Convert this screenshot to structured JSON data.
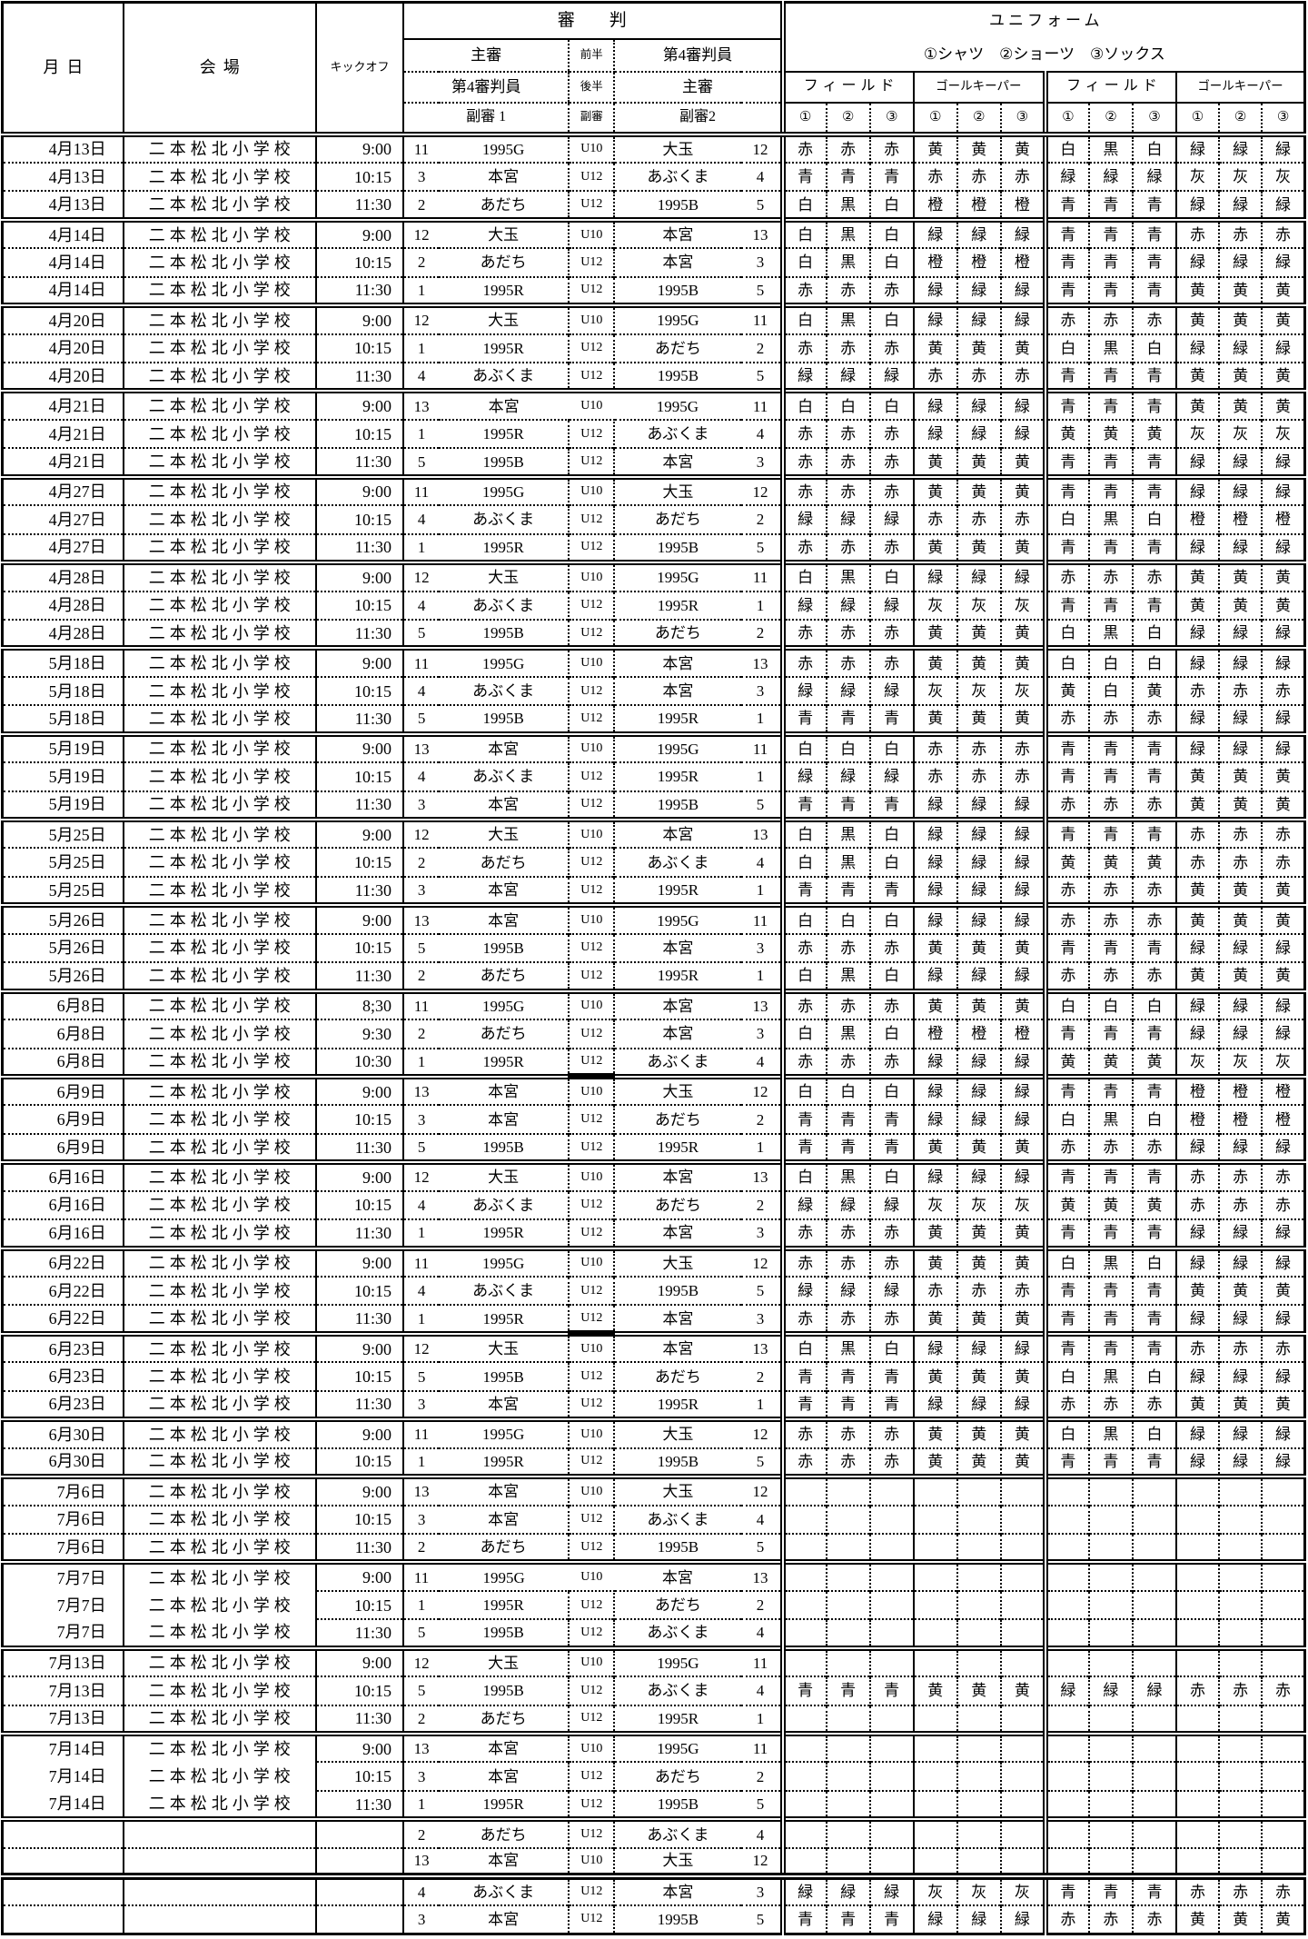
{
  "header": {
    "date": "月日",
    "venue": "会場",
    "kickoff": "キックオフ",
    "referee_title": "審　　判",
    "referee_rows": {
      "r2l": "主審",
      "r2h": "前半",
      "r2r": "第4審判員",
      "r3l": "第4審判員",
      "r3h": "後半",
      "r3r": "主審",
      "r4l": "副審 1",
      "r4h": "副審",
      "r4r": "副審2"
    },
    "uniform_title": "ユニフォーム",
    "uniform_subtitle": "①シャツ　②ショーツ　③ソックス",
    "group_labels": [
      "フィールド",
      "ゴールキーパー",
      "フィールド",
      "ゴールキーパー"
    ],
    "num_labels": [
      "①",
      "②",
      "③",
      "①",
      "②",
      "③",
      "①",
      "②",
      "③",
      "①",
      "②",
      "③"
    ]
  },
  "legend": {
    "colors_used": [
      "赤",
      "青",
      "白",
      "黒",
      "緑",
      "黄",
      "橙",
      "灰"
    ]
  },
  "rows": [
    {
      "d": "4月13日",
      "v": "二本松北小学校",
      "t": "9:00",
      "n1": "11",
      "r1": "1995G",
      "h": "U10",
      "r2": "大玉",
      "n2": "12",
      "c": "赤赤赤黄黄黄白黒白緑緑緑",
      "g": 1
    },
    {
      "d": "4月13日",
      "v": "二本松北小学校",
      "t": "10:15",
      "n1": "3",
      "r1": "本宮",
      "h": "U12",
      "r2": "あぶくま",
      "n2": "4",
      "c": "青青青赤赤赤緑緑緑灰灰灰"
    },
    {
      "d": "4月13日",
      "v": "二本松北小学校",
      "t": "11:30",
      "n1": "2",
      "r1": "あだち",
      "h": "U12",
      "r2": "1995B",
      "n2": "5",
      "c": "白黒白橙橙橙青青青緑緑緑"
    },
    {
      "d": "4月14日",
      "v": "二本松北小学校",
      "t": "9:00",
      "n1": "12",
      "r1": "大玉",
      "h": "U10",
      "r2": "本宮",
      "n2": "13",
      "c": "白黒白緑緑緑青青青赤赤赤",
      "g": 1
    },
    {
      "d": "4月14日",
      "v": "二本松北小学校",
      "t": "10:15",
      "n1": "2",
      "r1": "あだち",
      "h": "U12",
      "r2": "本宮",
      "n2": "3",
      "c": "白黒白橙橙橙青青青緑緑緑"
    },
    {
      "d": "4月14日",
      "v": "二本松北小学校",
      "t": "11:30",
      "n1": "1",
      "r1": "1995R",
      "h": "U12",
      "r2": "1995B",
      "n2": "5",
      "c": "赤赤赤緑緑緑青青青黄黄黄"
    },
    {
      "d": "4月20日",
      "v": "二本松北小学校",
      "t": "9:00",
      "n1": "12",
      "r1": "大玉",
      "h": "U10",
      "r2": "1995G",
      "n2": "11",
      "c": "白黒白緑緑緑赤赤赤黄黄黄",
      "g": 1
    },
    {
      "d": "4月20日",
      "v": "二本松北小学校",
      "t": "10:15",
      "n1": "1",
      "r1": "1995R",
      "h": "U12",
      "r2": "あだち",
      "n2": "2",
      "c": "赤赤赤黄黄黄白黒白緑緑緑"
    },
    {
      "d": "4月20日",
      "v": "二本松北小学校",
      "t": "11:30",
      "n1": "4",
      "r1": "あぶくま",
      "h": "U12",
      "r2": "1995B",
      "n2": "5",
      "c": "緑緑緑赤赤赤青青青黄黄黄"
    },
    {
      "d": "4月21日",
      "v": "二本松北小学校",
      "t": "9:00",
      "n1": "13",
      "r1": "本宮",
      "h": "U10",
      "r2": "1995G",
      "n2": "11",
      "c": "白白白緑緑緑青青青黄黄黄",
      "g": 1,
      "hb": 1
    },
    {
      "d": "4月21日",
      "v": "二本松北小学校",
      "t": "10:15",
      "n1": "1",
      "r1": "1995R",
      "h": "U12",
      "r2": "あぶくま",
      "n2": "4",
      "c": "赤赤赤緑緑緑黄黄黄灰灰灰"
    },
    {
      "d": "4月21日",
      "v": "二本松北小学校",
      "t": "11:30",
      "n1": "5",
      "r1": "1995B",
      "h": "U12",
      "r2": "本宮",
      "n2": "3",
      "c": "赤赤赤黄黄黄青青青緑緑緑"
    },
    {
      "d": "4月27日",
      "v": "二本松北小学校",
      "t": "9:00",
      "n1": "11",
      "r1": "1995G",
      "h": "U10",
      "r2": "大玉",
      "n2": "12",
      "c": "赤赤赤黄黄黄青青青緑緑緑",
      "g": 1
    },
    {
      "d": "4月27日",
      "v": "二本松北小学校",
      "t": "10:15",
      "n1": "4",
      "r1": "あぶくま",
      "h": "U12",
      "r2": "あだち",
      "n2": "2",
      "c": "緑緑緑赤赤赤白黒白橙橙橙"
    },
    {
      "d": "4月27日",
      "v": "二本松北小学校",
      "t": "11:30",
      "n1": "1",
      "r1": "1995R",
      "h": "U12",
      "r2": "1995B",
      "n2": "5",
      "c": "赤赤赤黄黄黄青青青緑緑緑"
    },
    {
      "d": "4月28日",
      "v": "二本松北小学校",
      "t": "9:00",
      "n1": "12",
      "r1": "大玉",
      "h": "U10",
      "r2": "1995G",
      "n2": "11",
      "c": "白黒白緑緑緑赤赤赤黄黄黄",
      "g": 1
    },
    {
      "d": "4月28日",
      "v": "二本松北小学校",
      "t": "10:15",
      "n1": "4",
      "r1": "あぶくま",
      "h": "U12",
      "r2": "1995R",
      "n2": "1",
      "c": "緑緑緑灰灰灰青青青黄黄黄"
    },
    {
      "d": "4月28日",
      "v": "二本松北小学校",
      "t": "11:30",
      "n1": "5",
      "r1": "1995B",
      "h": "U12",
      "r2": "あだち",
      "n2": "2",
      "c": "赤赤赤黄黄黄白黒白緑緑緑"
    },
    {
      "d": "5月18日",
      "v": "二本松北小学校",
      "t": "9:00",
      "n1": "11",
      "r1": "1995G",
      "h": "U10",
      "r2": "本宮",
      "n2": "13",
      "c": "赤赤赤黄黄黄白白白緑緑緑",
      "g": 1
    },
    {
      "d": "5月18日",
      "v": "二本松北小学校",
      "t": "10:15",
      "n1": "4",
      "r1": "あぶくま",
      "h": "U12",
      "r2": "本宮",
      "n2": "3",
      "c": "緑緑緑灰灰灰黄白黄赤赤赤"
    },
    {
      "d": "5月18日",
      "v": "二本松北小学校",
      "t": "11:30",
      "n1": "5",
      "r1": "1995B",
      "h": "U12",
      "r2": "1995R",
      "n2": "1",
      "c": "青青青黄黄黄赤赤赤緑緑緑"
    },
    {
      "d": "5月19日",
      "v": "二本松北小学校",
      "t": "9:00",
      "n1": "13",
      "r1": "本宮",
      "h": "U10",
      "r2": "1995G",
      "n2": "11",
      "c": "白白白赤赤赤青青青緑緑緑",
      "g": 1
    },
    {
      "d": "5月19日",
      "v": "二本松北小学校",
      "t": "10:15",
      "n1": "4",
      "r1": "あぶくま",
      "h": "U12",
      "r2": "1995R",
      "n2": "1",
      "c": "緑緑緑赤赤赤青青青黄黄黄"
    },
    {
      "d": "5月19日",
      "v": "二本松北小学校",
      "t": "11:30",
      "n1": "3",
      "r1": "本宮",
      "h": "U12",
      "r2": "1995B",
      "n2": "5",
      "c": "青青青緑緑緑赤赤赤黄黄黄"
    },
    {
      "d": "5月25日",
      "v": "二本松北小学校",
      "t": "9:00",
      "n1": "12",
      "r1": "大玉",
      "h": "U10",
      "r2": "本宮",
      "n2": "13",
      "c": "白黒白緑緑緑青青青赤赤赤",
      "g": 1
    },
    {
      "d": "5月25日",
      "v": "二本松北小学校",
      "t": "10:15",
      "n1": "2",
      "r1": "あだち",
      "h": "U12",
      "r2": "あぶくま",
      "n2": "4",
      "c": "白黒白緑緑緑黄黄黄赤赤赤"
    },
    {
      "d": "5月25日",
      "v": "二本松北小学校",
      "t": "11:30",
      "n1": "3",
      "r1": "本宮",
      "h": "U12",
      "r2": "1995R",
      "n2": "1",
      "c": "青青青緑緑緑赤赤赤黄黄黄"
    },
    {
      "d": "5月26日",
      "v": "二本松北小学校",
      "t": "9:00",
      "n1": "13",
      "r1": "本宮",
      "h": "U10",
      "r2": "1995G",
      "n2": "11",
      "c": "白白白緑緑緑赤赤赤黄黄黄",
      "g": 1
    },
    {
      "d": "5月26日",
      "v": "二本松北小学校",
      "t": "10:15",
      "n1": "5",
      "r1": "1995B",
      "h": "U12",
      "r2": "本宮",
      "n2": "3",
      "c": "赤赤赤黄黄黄青青青緑緑緑"
    },
    {
      "d": "5月26日",
      "v": "二本松北小学校",
      "t": "11:30",
      "n1": "2",
      "r1": "あだち",
      "h": "U12",
      "r2": "1995R",
      "n2": "1",
      "c": "白黒白緑緑緑赤赤赤黄黄黄"
    },
    {
      "d": "6月8日",
      "v": "二本松北小学校",
      "t": "8;30",
      "n1": "11",
      "r1": "1995G",
      "h": "U10",
      "r2": "本宮",
      "n2": "13",
      "c": "赤赤赤黄黄黄白白白緑緑緑",
      "g": 1
    },
    {
      "d": "6月8日",
      "v": "二本松北小学校",
      "t": "9:30",
      "n1": "2",
      "r1": "あだち",
      "h": "U12",
      "r2": "本宮",
      "n2": "3",
      "c": "白黒白橙橙橙青青青緑緑緑"
    },
    {
      "d": "6月8日",
      "v": "二本松北小学校",
      "t": "10:30",
      "n1": "1",
      "r1": "1995R",
      "h": "U12",
      "r2": "あぶくま",
      "n2": "4",
      "c": "赤赤赤緑緑緑黄黄黄灰灰灰",
      "hu": 1
    },
    {
      "d": "6月9日",
      "v": "二本松北小学校",
      "t": "9:00",
      "n1": "13",
      "r1": "本宮",
      "h": "U10",
      "r2": "大玉",
      "n2": "12",
      "c": "白白白緑緑緑青青青橙橙橙",
      "g": 1
    },
    {
      "d": "6月9日",
      "v": "二本松北小学校",
      "t": "10:15",
      "n1": "3",
      "r1": "本宮",
      "h": "U12",
      "r2": "あだち",
      "n2": "2",
      "c": "青青青緑緑緑白黒白橙橙橙"
    },
    {
      "d": "6月9日",
      "v": "二本松北小学校",
      "t": "11:30",
      "n1": "5",
      "r1": "1995B",
      "h": "U12",
      "r2": "1995R",
      "n2": "1",
      "c": "青青青黄黄黄赤赤赤緑緑緑"
    },
    {
      "d": "6月16日",
      "v": "二本松北小学校",
      "t": "9:00",
      "n1": "12",
      "r1": "大玉",
      "h": "U10",
      "r2": "本宮",
      "n2": "13",
      "c": "白黒白緑緑緑青青青赤赤赤",
      "g": 1
    },
    {
      "d": "6月16日",
      "v": "二本松北小学校",
      "t": "10:15",
      "n1": "4",
      "r1": "あぶくま",
      "h": "U12",
      "r2": "あだち",
      "n2": "2",
      "c": "緑緑緑灰灰灰黄黄黄赤赤赤"
    },
    {
      "d": "6月16日",
      "v": "二本松北小学校",
      "t": "11:30",
      "n1": "1",
      "r1": "1995R",
      "h": "U12",
      "r2": "本宮",
      "n2": "3",
      "c": "赤赤赤黄黄黄青青青緑緑緑"
    },
    {
      "d": "6月22日",
      "v": "二本松北小学校",
      "t": "9:00",
      "n1": "11",
      "r1": "1995G",
      "h": "U10",
      "r2": "大玉",
      "n2": "12",
      "c": "赤赤赤黄黄黄白黒白緑緑緑",
      "g": 1
    },
    {
      "d": "6月22日",
      "v": "二本松北小学校",
      "t": "10:15",
      "n1": "4",
      "r1": "あぶくま",
      "h": "U12",
      "r2": "1995B",
      "n2": "5",
      "c": "緑緑緑赤赤赤青青青黄黄黄"
    },
    {
      "d": "6月22日",
      "v": "二本松北小学校",
      "t": "11:30",
      "n1": "1",
      "r1": "1995R",
      "h": "U12",
      "r2": "本宮",
      "n2": "3",
      "c": "赤赤赤黄黄黄青青青緑緑緑",
      "hu": 1
    },
    {
      "d": "6月23日",
      "v": "二本松北小学校",
      "t": "9:00",
      "n1": "12",
      "r1": "大玉",
      "h": "U10",
      "r2": "本宮",
      "n2": "13",
      "c": "白黒白緑緑緑青青青赤赤赤",
      "g": 1
    },
    {
      "d": "6月23日",
      "v": "二本松北小学校",
      "t": "10:15",
      "n1": "5",
      "r1": "1995B",
      "h": "U12",
      "r2": "あだち",
      "n2": "2",
      "c": "青青青黄黄黄白黒白緑緑緑"
    },
    {
      "d": "6月23日",
      "v": "二本松北小学校",
      "t": "11:30",
      "n1": "3",
      "r1": "本宮",
      "h": "U12",
      "r2": "1995R",
      "n2": "1",
      "c": "青青青緑緑緑赤赤赤黄黄黄"
    },
    {
      "d": "6月30日",
      "v": "二本松北小学校",
      "t": "9:00",
      "n1": "11",
      "r1": "1995G",
      "h": "U10",
      "r2": "大玉",
      "n2": "12",
      "c": "赤赤赤黄黄黄白黒白緑緑緑",
      "g": 1
    },
    {
      "d": "6月30日",
      "v": "二本松北小学校",
      "t": "10:15",
      "n1": "1",
      "r1": "1995R",
      "h": "U12",
      "r2": "1995B",
      "n2": "5",
      "c": "赤赤赤黄黄黄青青青緑緑緑"
    },
    {
      "d": "7月6日",
      "v": "二本松北小学校",
      "t": "9:00",
      "n1": "13",
      "r1": "本宮",
      "h": "U10",
      "r2": "大玉",
      "n2": "12",
      "c": "",
      "g": 1
    },
    {
      "d": "7月6日",
      "v": "二本松北小学校",
      "t": "10:15",
      "n1": "3",
      "r1": "本宮",
      "h": "U12",
      "r2": "あぶくま",
      "n2": "4",
      "c": ""
    },
    {
      "d": "7月6日",
      "v": "二本松北小学校",
      "t": "11:30",
      "n1": "2",
      "r1": "あだち",
      "h": "U12",
      "r2": "1995B",
      "n2": "5",
      "c": ""
    },
    {
      "d": "7月7日",
      "v": "二本松北小学校",
      "t": "9:00",
      "n1": "11",
      "r1": "1995G",
      "h": "U10",
      "r2": "本宮",
      "n2": "13",
      "c": "",
      "g": 1,
      "hb": 1
    },
    {
      "d": "7月7日",
      "v": "二本松北小学校",
      "t": "10:15",
      "n1": "1",
      "r1": "1995R",
      "h": "U12",
      "r2": "あだち",
      "n2": "2",
      "c": "",
      "ls": 1
    },
    {
      "d": "7月7日",
      "v": "二本松北小学校",
      "t": "11:30",
      "n1": "5",
      "r1": "1995B",
      "h": "U12",
      "r2": "あぶくま",
      "n2": "4",
      "c": "",
      "ls": 1
    },
    {
      "d": "7月13日",
      "v": "二本松北小学校",
      "t": "9:00",
      "n1": "12",
      "r1": "大玉",
      "h": "U10",
      "r2": "1995G",
      "n2": "11",
      "c": "",
      "g": 1
    },
    {
      "d": "7月13日",
      "v": "二本松北小学校",
      "t": "10:15",
      "n1": "5",
      "r1": "1995B",
      "h": "U12",
      "r2": "あぶくま",
      "n2": "4",
      "c": "青青青黄黄黄緑緑緑赤赤赤"
    },
    {
      "d": "7月13日",
      "v": "二本松北小学校",
      "t": "11:30",
      "n1": "2",
      "r1": "あだち",
      "h": "U12",
      "r2": "1995R",
      "n2": "1",
      "c": ""
    },
    {
      "d": "7月14日",
      "v": "二本松北小学校",
      "t": "9:00",
      "n1": "13",
      "r1": "本宮",
      "h": "U10",
      "r2": "1995G",
      "n2": "11",
      "c": "",
      "g": 1
    },
    {
      "d": "7月14日",
      "v": "二本松北小学校",
      "t": "10:15",
      "n1": "3",
      "r1": "本宮",
      "h": "U12",
      "r2": "あだち",
      "n2": "2",
      "c": "",
      "ls": 1
    },
    {
      "d": "7月14日",
      "v": "二本松北小学校",
      "t": "11:30",
      "n1": "1",
      "r1": "1995R",
      "h": "U12",
      "r2": "1995B",
      "n2": "5",
      "c": "",
      "ls": 1
    },
    {
      "d": "",
      "v": "",
      "t": "",
      "n1": "2",
      "r1": "あだち",
      "h": "U12",
      "r2": "あぶくま",
      "n2": "4",
      "c": "",
      "g": 1
    },
    {
      "d": "",
      "v": "",
      "t": "",
      "n1": "13",
      "r1": "本宮",
      "h": "U10",
      "r2": "大玉",
      "n2": "12",
      "c": ""
    },
    {
      "d": "",
      "v": "",
      "t": "",
      "n1": "4",
      "r1": "あぶくま",
      "h": "U12",
      "r2": "本宮",
      "n2": "3",
      "c": "緑緑緑灰灰灰青青青赤赤赤",
      "g": 1,
      "heavy": 1
    },
    {
      "d": "",
      "v": "",
      "t": "",
      "n1": "3",
      "r1": "本宮",
      "h": "U12",
      "r2": "1995B",
      "n2": "5",
      "c": "青青青緑緑緑赤赤赤黄黄黄"
    }
  ]
}
